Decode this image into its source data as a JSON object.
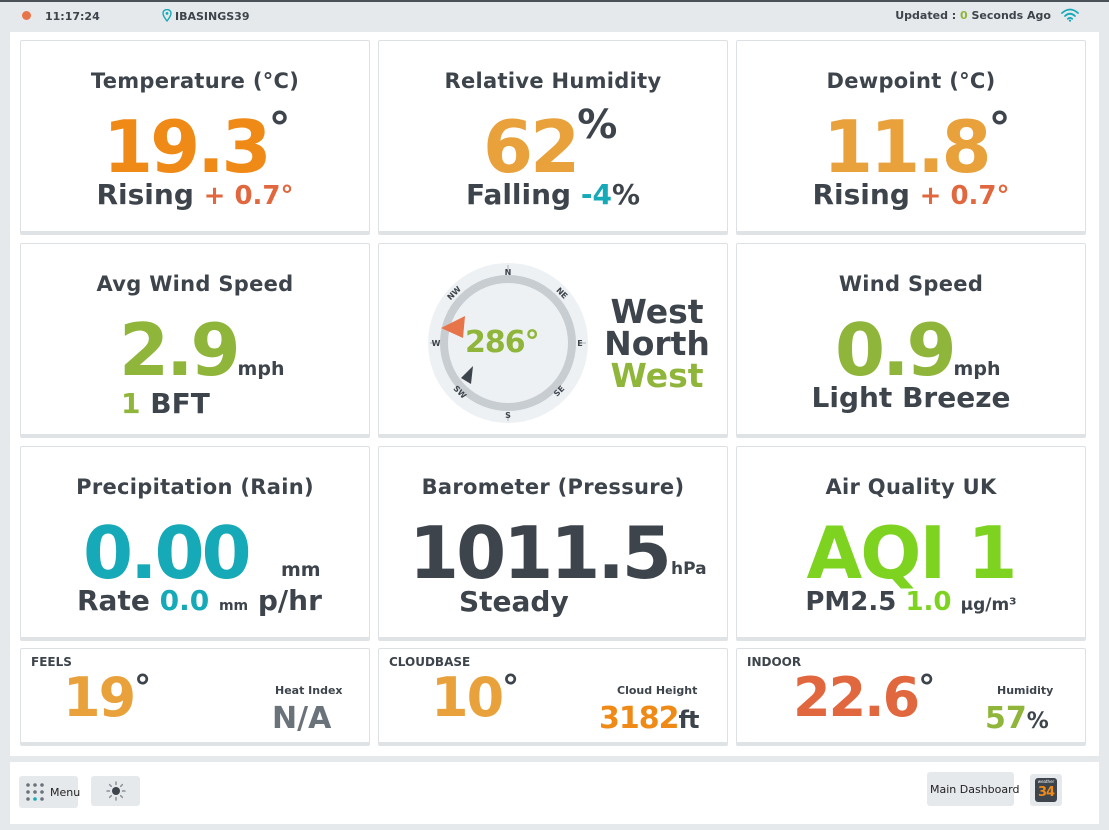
{
  "topbar": {
    "time": "11:17:24",
    "station": "IBASINGS39",
    "updated_prefix": "Updated : ",
    "updated_value": "0",
    "updated_suffix": " Seconds Ago"
  },
  "temperature": {
    "title": "Temperature (°C)",
    "value": "19.3",
    "unit": "°",
    "trend": "Rising",
    "change": "+ 0.7°"
  },
  "humidity": {
    "title": "Relative Humidity",
    "value": "62",
    "unit": "%",
    "trend": "Falling",
    "change": "-4",
    "change_unit": "%"
  },
  "dewpoint": {
    "title": "Dewpoint (°C)",
    "value": "11.8",
    "unit": "°",
    "trend": "Rising",
    "change": "+ 0.7°"
  },
  "avg_wind": {
    "title": "Avg Wind Speed",
    "value": "2.9",
    "unit": "mph",
    "bft_value": "1",
    "bft_label": "BFT"
  },
  "compass": {
    "degrees": "286°",
    "direction_line1": "West",
    "direction_line2": "North",
    "direction_line3": "West",
    "labels": {
      "n": "N",
      "ne": "NE",
      "e": "E",
      "se": "SE",
      "s": "S",
      "sw": "SW",
      "w": "W",
      "nw": "NW"
    }
  },
  "wind_speed": {
    "title": "Wind Speed",
    "value": "0.9",
    "unit": "mph",
    "description": "Light Breeze"
  },
  "precipitation": {
    "title": "Precipitation (Rain)",
    "value": "0.00",
    "unit": "mm",
    "rate_label": "Rate",
    "rate_value": "0.0",
    "rate_unit_small": "mm",
    "rate_unit": "p/hr"
  },
  "barometer": {
    "title": "Barometer (Pressure)",
    "value": "1011.5",
    "unit": "hPa",
    "trend": "Steady"
  },
  "air_quality": {
    "title": "Air Quality UK",
    "value": "AQI 1",
    "pm_label": "PM2.5",
    "pm_value": "1.0",
    "pm_unit": "μg/m³"
  },
  "feels": {
    "title": "FEELS",
    "value": "19",
    "unit": "°",
    "heat_label": "Heat Index",
    "heat_value": "N/A"
  },
  "cloudbase": {
    "title": "CLOUDBASE",
    "value": "10",
    "unit": "°",
    "height_label": "Cloud Height",
    "height_value": "3182",
    "height_unit": "ft"
  },
  "indoor": {
    "title": "INDOOR",
    "value": "22.6",
    "unit": "°",
    "humidity_label": "Humidity",
    "humidity_value": "57",
    "humidity_unit": "%"
  },
  "bottombar": {
    "menu_label": "Menu",
    "dashboard_label": "Main Dashboard",
    "logo_top": "weather",
    "logo_num": "34"
  },
  "colors": {
    "orange": "#f08a17",
    "green": "#8fb63a",
    "teal": "#16a9b7",
    "red": "#e0673e",
    "lime": "#7ed321"
  }
}
